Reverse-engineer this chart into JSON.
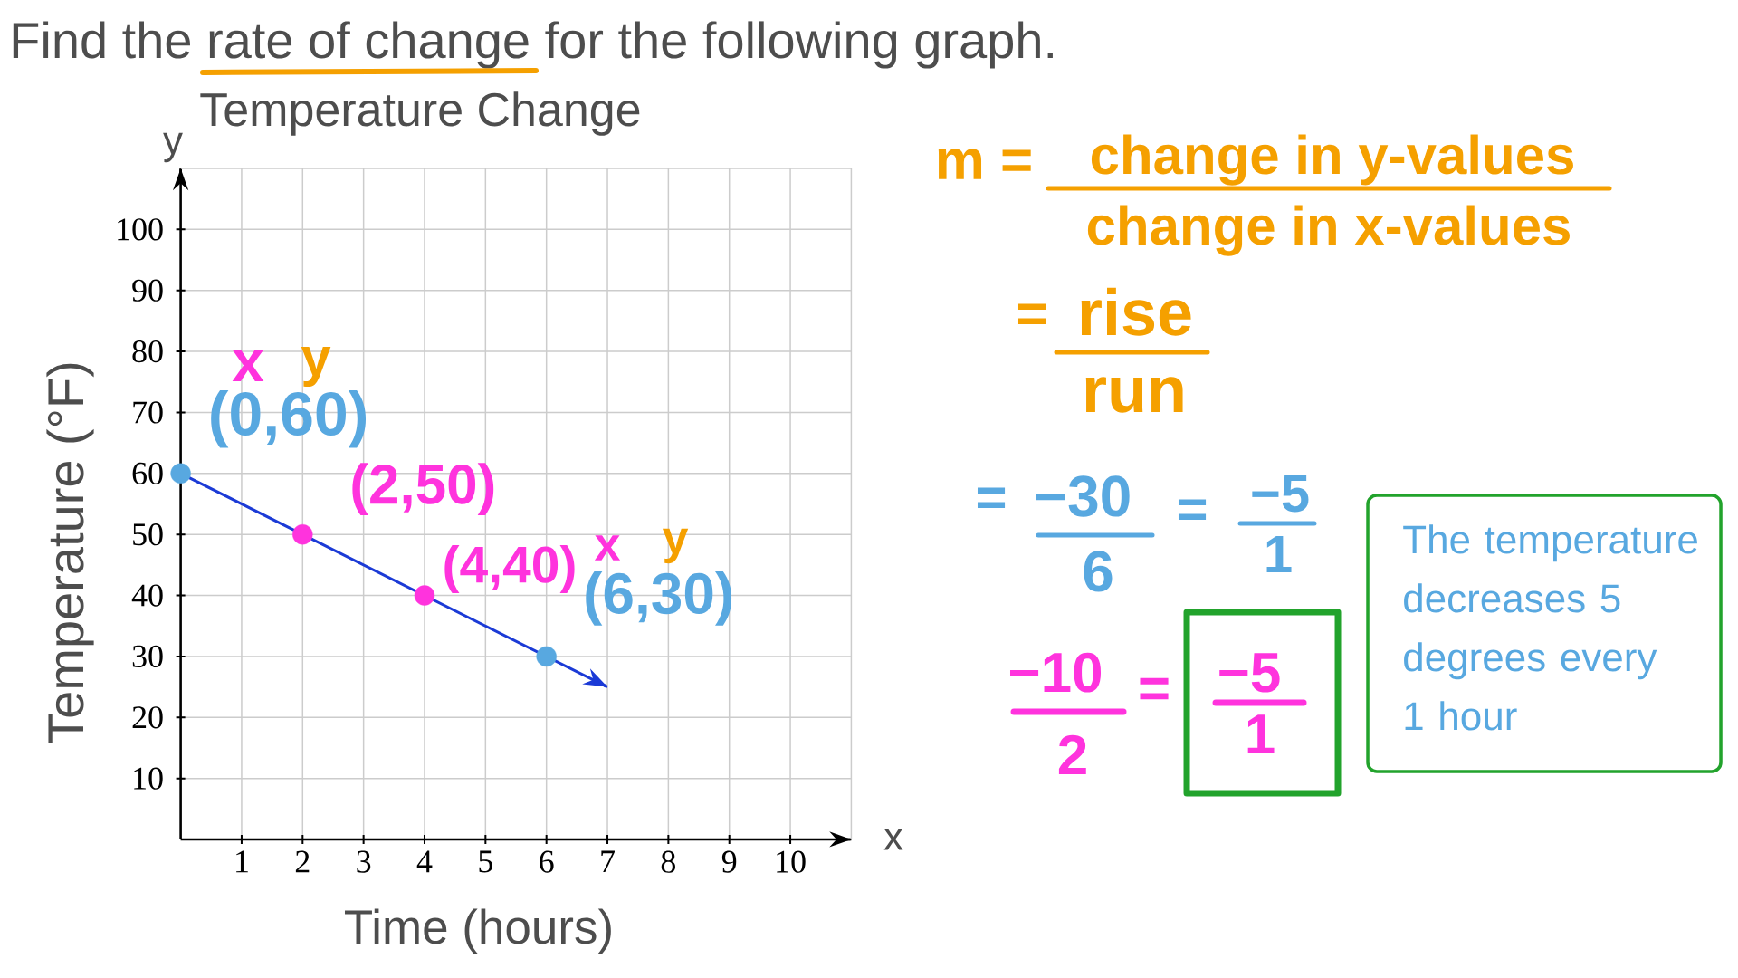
{
  "chart_data": {
    "type": "line",
    "title": "Temperature Change",
    "xlabel": "Time (hours)",
    "ylabel": "Temperature (°F)",
    "xlim": [
      0,
      11
    ],
    "ylim": [
      0,
      110
    ],
    "xticks": [
      1,
      2,
      3,
      4,
      5,
      6,
      7,
      8,
      9,
      10
    ],
    "yticks": [
      10,
      20,
      30,
      40,
      50,
      60,
      70,
      80,
      90,
      100
    ],
    "grid": true,
    "series": [
      {
        "x": [
          0,
          7
        ],
        "values": [
          60,
          25
        ],
        "color": "#1b3ad6",
        "marker": "none"
      },
      {
        "type": "scatter",
        "x": [
          0,
          2,
          4,
          6
        ],
        "values": [
          60,
          50,
          40,
          30
        ],
        "colors": [
          "#58a8e0",
          "#ff33dd",
          "#ff33dd",
          "#58a8e0"
        ],
        "marker": "circle"
      }
    ],
    "annotations": [
      "Find the rate of change for the following graph.",
      {
        "text": "(0,60)",
        "x": 0,
        "y": 60
      },
      {
        "text": "(2,50)",
        "x": 2,
        "y": 50
      },
      {
        "text": "(4,40)",
        "x": 4,
        "y": 40
      },
      {
        "text": "(6,30)",
        "x": 6,
        "y": 30
      },
      "x",
      "y",
      "x",
      "y",
      "y",
      "x",
      "m =",
      "change in y-values",
      "change in x-values",
      "=",
      "rise",
      "run",
      "=",
      "−30",
      "6",
      "=",
      "−5",
      "1",
      "−10",
      "2",
      "=",
      "−5",
      "1",
      "The temperature decreases 5 degrees every 1 hour"
    ]
  }
}
